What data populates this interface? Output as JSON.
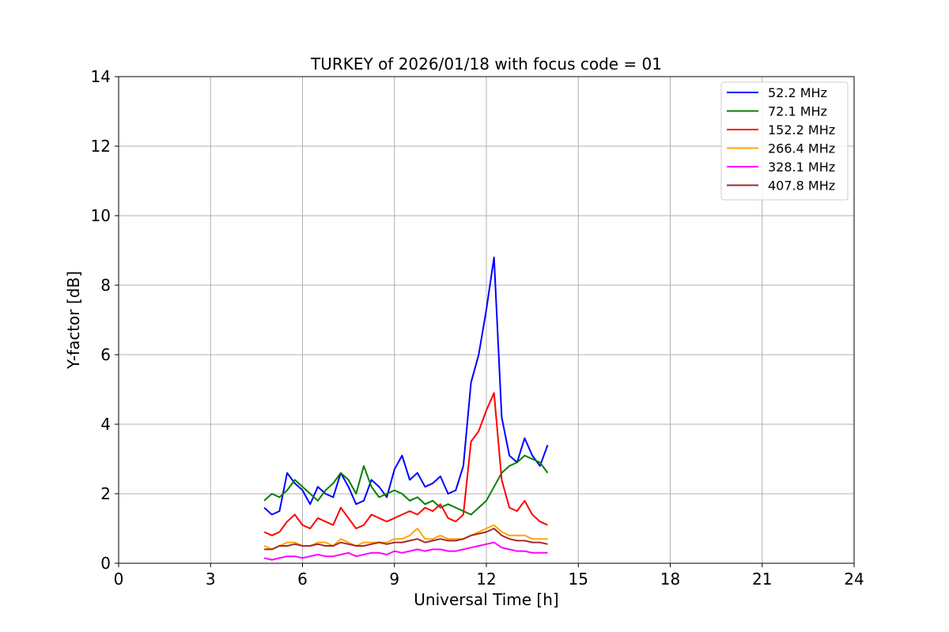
{
  "chart_data": {
    "type": "line",
    "title": "TURKEY of 2026/01/18 with focus code = 01",
    "xlabel": "Universal Time [h]",
    "ylabel": "Y-factor [dB]",
    "xlim": [
      0,
      24
    ],
    "ylim": [
      0,
      14
    ],
    "xticks": [
      0,
      3,
      6,
      9,
      12,
      15,
      18,
      21,
      24
    ],
    "yticks": [
      0,
      2,
      4,
      6,
      8,
      10,
      12,
      14
    ],
    "grid": true,
    "legend_position": "top-right",
    "series": [
      {
        "name": " 52.2 MHz",
        "color": "#0000ff",
        "x": [
          4.75,
          5.0,
          5.25,
          5.5,
          5.75,
          6.0,
          6.25,
          6.5,
          6.75,
          7.0,
          7.25,
          7.5,
          7.75,
          8.0,
          8.25,
          8.5,
          8.75,
          9.0,
          9.25,
          9.5,
          9.75,
          10.0,
          10.25,
          10.5,
          10.75,
          11.0,
          11.25,
          11.5,
          11.75,
          12.0,
          12.25,
          12.5,
          12.75,
          13.0,
          13.25,
          13.5,
          13.75,
          14.0
        ],
        "y": [
          1.6,
          1.4,
          1.5,
          2.6,
          2.3,
          2.1,
          1.7,
          2.2,
          2.0,
          1.9,
          2.6,
          2.2,
          1.7,
          1.8,
          2.4,
          2.2,
          1.9,
          2.7,
          3.1,
          2.4,
          2.6,
          2.2,
          2.3,
          2.5,
          2.0,
          2.1,
          2.8,
          5.2,
          6.0,
          7.3,
          8.8,
          4.2,
          3.1,
          2.9,
          3.6,
          3.1,
          2.8,
          3.4
        ]
      },
      {
        "name": " 72.1 MHz",
        "color": "#008000",
        "x": [
          4.75,
          5.0,
          5.25,
          5.5,
          5.75,
          6.0,
          6.25,
          6.5,
          6.75,
          7.0,
          7.25,
          7.5,
          7.75,
          8.0,
          8.25,
          8.5,
          8.75,
          9.0,
          9.25,
          9.5,
          9.75,
          10.0,
          10.25,
          10.5,
          10.75,
          11.0,
          11.25,
          11.5,
          11.75,
          12.0,
          12.25,
          12.5,
          12.75,
          13.0,
          13.25,
          13.5,
          13.75,
          14.0
        ],
        "y": [
          1.8,
          2.0,
          1.9,
          2.1,
          2.4,
          2.2,
          2.0,
          1.8,
          2.1,
          2.3,
          2.6,
          2.4,
          2.0,
          2.8,
          2.2,
          1.9,
          2.0,
          2.1,
          2.0,
          1.8,
          1.9,
          1.7,
          1.8,
          1.6,
          1.7,
          1.6,
          1.5,
          1.4,
          1.6,
          1.8,
          2.2,
          2.6,
          2.8,
          2.9,
          3.1,
          3.0,
          2.9,
          2.6
        ]
      },
      {
        "name": "152.2 MHz",
        "color": "#ff0000",
        "x": [
          4.75,
          5.0,
          5.25,
          5.5,
          5.75,
          6.0,
          6.25,
          6.5,
          6.75,
          7.0,
          7.25,
          7.5,
          7.75,
          8.0,
          8.25,
          8.5,
          8.75,
          9.0,
          9.25,
          9.5,
          9.75,
          10.0,
          10.25,
          10.5,
          10.75,
          11.0,
          11.25,
          11.5,
          11.75,
          12.0,
          12.25,
          12.5,
          12.75,
          13.0,
          13.25,
          13.5,
          13.75,
          14.0
        ],
        "y": [
          0.9,
          0.8,
          0.9,
          1.2,
          1.4,
          1.1,
          1.0,
          1.3,
          1.2,
          1.1,
          1.6,
          1.3,
          1.0,
          1.1,
          1.4,
          1.3,
          1.2,
          1.3,
          1.4,
          1.5,
          1.4,
          1.6,
          1.5,
          1.7,
          1.3,
          1.2,
          1.4,
          3.5,
          3.8,
          4.4,
          4.9,
          2.4,
          1.6,
          1.5,
          1.8,
          1.4,
          1.2,
          1.1
        ]
      },
      {
        "name": "266.4 MHz",
        "color": "#ffa500",
        "x": [
          4.75,
          5.0,
          5.25,
          5.5,
          5.75,
          6.0,
          6.25,
          6.5,
          6.75,
          7.0,
          7.25,
          7.5,
          7.75,
          8.0,
          8.25,
          8.5,
          8.75,
          9.0,
          9.25,
          9.5,
          9.75,
          10.0,
          10.25,
          10.5,
          10.75,
          11.0,
          11.25,
          11.5,
          11.75,
          12.0,
          12.25,
          12.5,
          12.75,
          13.0,
          13.25,
          13.5,
          13.75,
          14.0
        ],
        "y": [
          0.5,
          0.4,
          0.5,
          0.6,
          0.6,
          0.5,
          0.5,
          0.6,
          0.6,
          0.5,
          0.7,
          0.6,
          0.5,
          0.6,
          0.6,
          0.6,
          0.6,
          0.7,
          0.7,
          0.8,
          1.0,
          0.7,
          0.7,
          0.8,
          0.7,
          0.7,
          0.7,
          0.8,
          0.9,
          1.0,
          1.1,
          0.9,
          0.8,
          0.8,
          0.8,
          0.7,
          0.7,
          0.7
        ]
      },
      {
        "name": "328.1 MHz",
        "color": "#ff00ff",
        "x": [
          4.75,
          5.0,
          5.25,
          5.5,
          5.75,
          6.0,
          6.25,
          6.5,
          6.75,
          7.0,
          7.25,
          7.5,
          7.75,
          8.0,
          8.25,
          8.5,
          8.75,
          9.0,
          9.25,
          9.5,
          9.75,
          10.0,
          10.25,
          10.5,
          10.75,
          11.0,
          11.25,
          11.5,
          11.75,
          12.0,
          12.25,
          12.5,
          12.75,
          13.0,
          13.25,
          13.5,
          13.75,
          14.0
        ],
        "y": [
          0.15,
          0.1,
          0.15,
          0.2,
          0.2,
          0.15,
          0.2,
          0.25,
          0.2,
          0.2,
          0.25,
          0.3,
          0.2,
          0.25,
          0.3,
          0.3,
          0.25,
          0.35,
          0.3,
          0.35,
          0.4,
          0.35,
          0.4,
          0.4,
          0.35,
          0.35,
          0.4,
          0.45,
          0.5,
          0.55,
          0.6,
          0.45,
          0.4,
          0.35,
          0.35,
          0.3,
          0.3,
          0.3
        ]
      },
      {
        "name": "407.8 MHz",
        "color": "#a52a2a",
        "x": [
          4.75,
          5.0,
          5.25,
          5.5,
          5.75,
          6.0,
          6.25,
          6.5,
          6.75,
          7.0,
          7.25,
          7.5,
          7.75,
          8.0,
          8.25,
          8.5,
          8.75,
          9.0,
          9.25,
          9.5,
          9.75,
          10.0,
          10.25,
          10.5,
          10.75,
          11.0,
          11.25,
          11.5,
          11.75,
          12.0,
          12.25,
          12.5,
          12.75,
          13.0,
          13.25,
          13.5,
          13.75,
          14.0
        ],
        "y": [
          0.4,
          0.4,
          0.5,
          0.5,
          0.55,
          0.5,
          0.5,
          0.55,
          0.5,
          0.5,
          0.6,
          0.55,
          0.5,
          0.5,
          0.55,
          0.6,
          0.55,
          0.6,
          0.6,
          0.65,
          0.7,
          0.6,
          0.65,
          0.7,
          0.65,
          0.65,
          0.7,
          0.8,
          0.85,
          0.9,
          1.0,
          0.8,
          0.7,
          0.65,
          0.65,
          0.6,
          0.6,
          0.55
        ]
      }
    ]
  }
}
